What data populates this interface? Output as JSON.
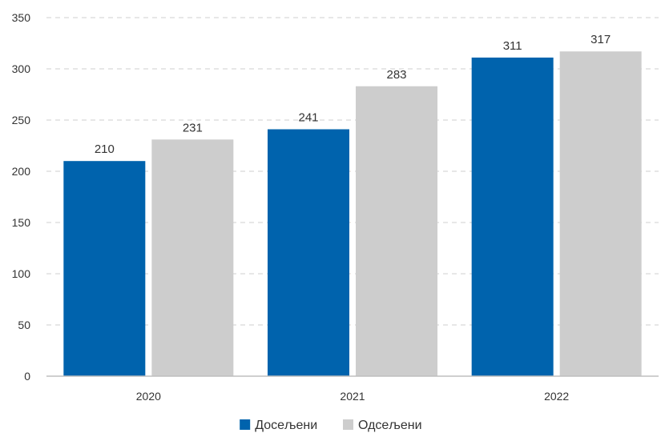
{
  "chart_data": {
    "type": "bar",
    "categories": [
      "2020",
      "2021",
      "2022"
    ],
    "series": [
      {
        "name": "Досељени",
        "values": [
          210,
          241,
          311
        ],
        "color": "#0063ad"
      },
      {
        "name": "Одсељени",
        "values": [
          231,
          283,
          317
        ],
        "color": "#cdcdcd"
      }
    ],
    "ylim": [
      0,
      350
    ],
    "yticks": [
      0,
      50,
      100,
      150,
      200,
      250,
      300,
      350
    ],
    "grid": true,
    "legend_position": "bottom-center",
    "data_labels": true
  }
}
